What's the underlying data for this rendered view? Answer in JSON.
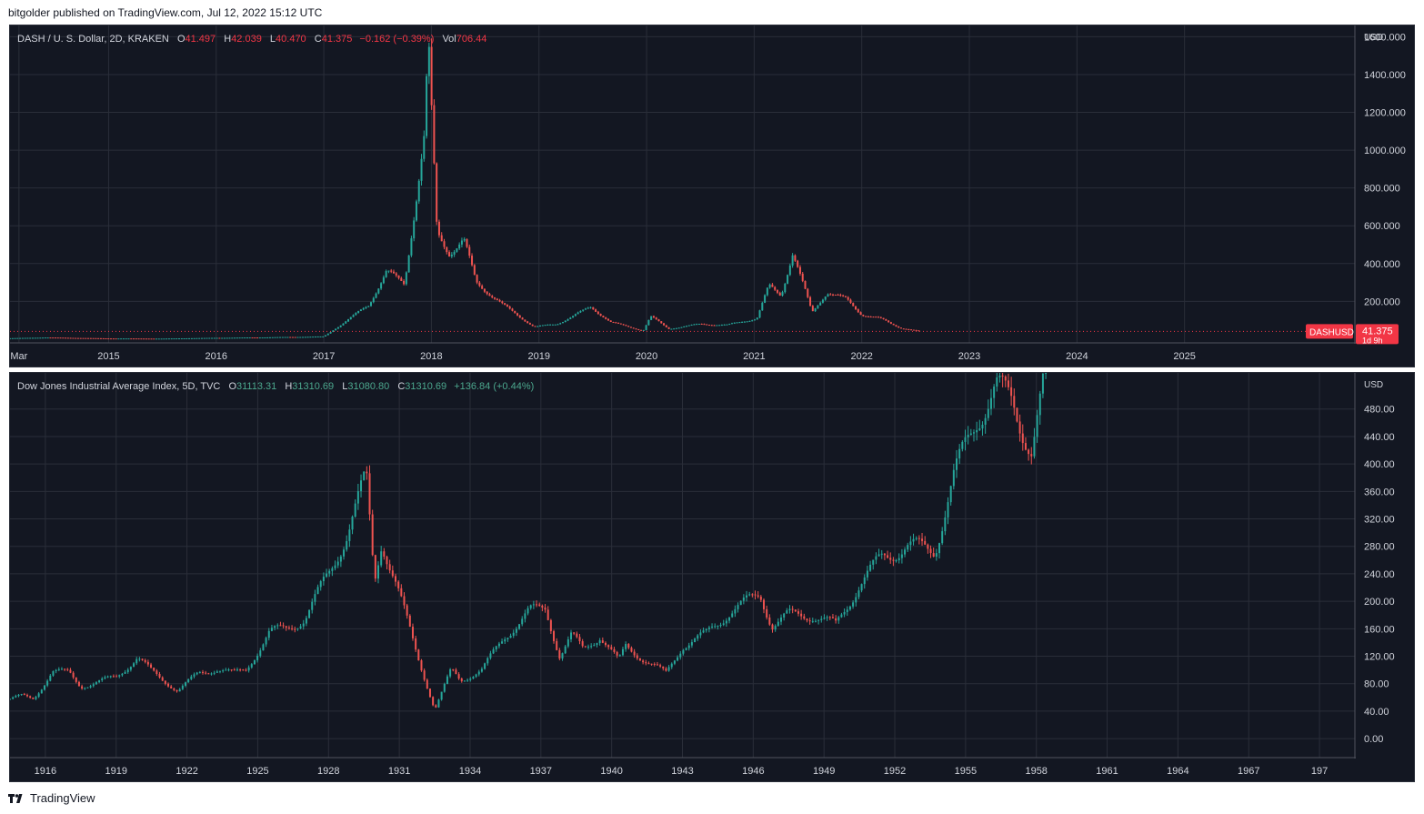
{
  "header": {
    "publisher": "bitgolder published on TradingView.com, Jul 12, 2022 15:12 UTC"
  },
  "footer": {
    "brand": "TradingView"
  },
  "colors": {
    "background": "#131722",
    "grid": "#2a2e39",
    "up": "#26a69a",
    "down": "#ef5350",
    "axis_text": "#d1d4dc",
    "last_price_badge": "#f23645"
  },
  "pane1": {
    "legend": {
      "symbol": "DASH / U. S. Dollar, 2D, KRAKEN",
      "o_label": "O",
      "o_value": "41.497",
      "h_label": "H",
      "h_value": "42.039",
      "l_label": "L",
      "l_value": "40.470",
      "c_label": "C",
      "c_value": "41.375",
      "change": "−0.162 (−0.39%)",
      "vol_label": "Vol",
      "vol_value": "706.44"
    },
    "currency": "USD",
    "badge_symbol": "DASHUSD",
    "badge_price": "41.375",
    "badge_countdown": "1d 9h"
  },
  "pane2": {
    "legend": {
      "symbol": "Dow Jones Industrial Average Index, 5D, TVC",
      "o_label": "O",
      "o_value": "31113.31",
      "h_label": "H",
      "h_value": "31310.69",
      "l_label": "L",
      "l_value": "31080.80",
      "c_label": "C",
      "c_value": "31310.69",
      "change": "+136.84 (+0.44%)"
    },
    "currency": "USD"
  },
  "chart_data": [
    {
      "type": "line",
      "title": "DASH / U. S. Dollar, 2D, KRAKEN",
      "x": [
        "2014-02",
        "2014-06",
        "2015-01",
        "2015-07",
        "2016-01",
        "2016-07",
        "2017-01",
        "2017-03",
        "2017-06",
        "2017-08",
        "2017-10",
        "2017-12-10",
        "2017-12-20",
        "2018-01-01",
        "2018-01-20",
        "2018-03-01",
        "2018-04-20",
        "2018-06-01",
        "2018-09-01",
        "2018-12-15",
        "2019-03-01",
        "2019-06-25",
        "2019-09-01",
        "2019-12-20",
        "2020-01-15",
        "2020-03-15",
        "2020-07-01",
        "2020-10-01",
        "2021-01-10",
        "2021-02-20",
        "2021-04-01",
        "2021-05-10",
        "2021-07-15",
        "2021-09-05",
        "2021-11-10",
        "2022-01-01",
        "2022-03-01",
        "2022-05-10",
        "2022-07-12"
      ],
      "values": [
        5,
        9,
        4,
        3,
        7,
        10,
        14,
        80,
        180,
        360,
        290,
        1100,
        1600,
        1200,
        560,
        460,
        520,
        300,
        180,
        65,
        80,
        170,
        90,
        45,
        120,
        55,
        80,
        75,
        110,
        280,
        230,
        460,
        140,
        250,
        210,
        130,
        110,
        60,
        41.375
      ],
      "xlim": [
        "2014-02",
        "2026-08"
      ],
      "x_ticks": [
        "Mar",
        "2015",
        "2016",
        "2017",
        "2018",
        "2019",
        "2020",
        "2021",
        "2022",
        "2023",
        "2024",
        "2025"
      ],
      "ylim": [
        -10,
        1650
      ],
      "y_ticks": [
        "1600.000",
        "1400.000",
        "1200.000",
        "1000.000",
        "800.000",
        "600.000",
        "400.000",
        "200.000"
      ],
      "last_price": 41.375
    },
    {
      "type": "line",
      "title": "Dow Jones Industrial Average Index, 5D, TVC",
      "x": [
        1914.5,
        1915.0,
        1915.5,
        1916.3,
        1917.0,
        1917.5,
        1918.0,
        1919.0,
        1919.9,
        1920.5,
        1921.6,
        1922.5,
        1923.3,
        1924.0,
        1924.5,
        1925.5,
        1926.2,
        1927.0,
        1928.0,
        1928.8,
        1929.6,
        1929.95,
        1930.25,
        1930.9,
        1931.6,
        1932.5,
        1933.2,
        1933.6,
        1934.5,
        1935.5,
        1936.5,
        1937.2,
        1937.8,
        1938.3,
        1938.8,
        1939.5,
        1940.3,
        1940.6,
        1941.5,
        1942.3,
        1943.0,
        1944.0,
        1945.0,
        1946.3,
        1946.8,
        1947.5,
        1948.5,
        1949.5,
        1950.5,
        1951.5,
        1952.5,
        1953.7,
        1954.5,
        1955.5,
        1956.3,
        1957.0,
        1957.8,
        1958.4
      ],
      "values": [
        58,
        62,
        58,
        98,
        96,
        76,
        80,
        90,
        118,
        98,
        70,
        95,
        102,
        95,
        100,
        155,
        160,
        175,
        240,
        300,
        381,
        230,
        290,
        220,
        140,
        42,
        100,
        85,
        100,
        150,
        185,
        190,
        120,
        150,
        130,
        150,
        112,
        135,
        112,
        95,
        135,
        152,
        185,
        210,
        165,
        180,
        180,
        165,
        225,
        265,
        280,
        275,
        380,
        470,
        510,
        490,
        420,
        530
      ],
      "xlim": [
        1914.5,
        1971.5
      ],
      "x_ticks": [
        "1916",
        "1919",
        "1922",
        "1925",
        "1928",
        "1931",
        "1934",
        "1937",
        "1940",
        "1943",
        "1946",
        "1949",
        "1952",
        "1955",
        "1958",
        "1961",
        "1964",
        "1967",
        "197"
      ],
      "ylim": [
        -25,
        530
      ],
      "y_ticks": [
        "480.00",
        "440.00",
        "400.00",
        "360.00",
        "320.00",
        "280.00",
        "240.00",
        "200.00",
        "160.00",
        "120.00",
        "80.00",
        "40.00",
        "0.00"
      ]
    }
  ]
}
